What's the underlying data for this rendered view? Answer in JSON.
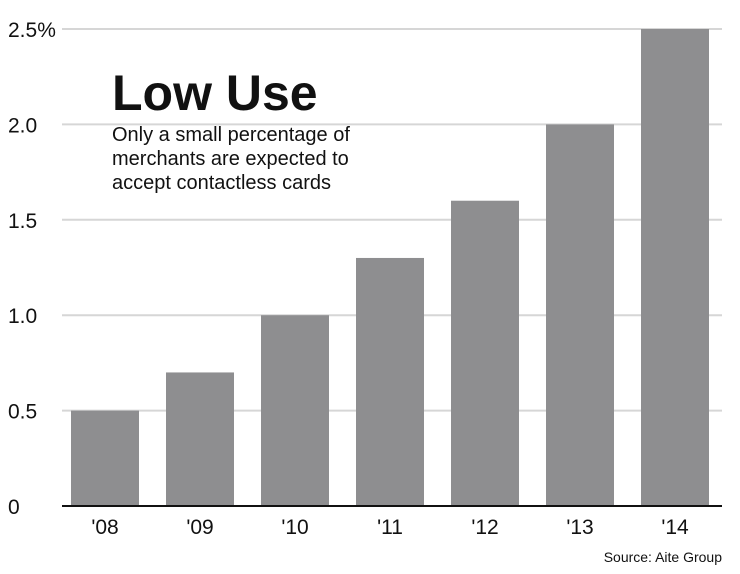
{
  "chart_data": {
    "type": "bar",
    "title": "Low Use",
    "subtitle_lines": [
      "Only a small percentage of",
      "merchants are expected to",
      "accept contactless cards"
    ],
    "source": "Source: Aite Group",
    "categories": [
      "'08",
      "'09",
      "'10",
      "'11",
      "'12",
      "'13",
      "'14"
    ],
    "values": [
      0.5,
      0.7,
      1.0,
      1.3,
      1.6,
      2.0,
      2.5
    ],
    "yticks": [
      0,
      0.5,
      1.0,
      1.5,
      2.0,
      2.5
    ],
    "ytick_labels": [
      "0",
      "0.5",
      "1.0",
      "1.5",
      "2.0",
      "2.5%"
    ],
    "ylim": [
      0,
      2.5
    ],
    "grid": true,
    "bar_color": "#8e8e90",
    "grid_color": "#d6d6d6"
  }
}
